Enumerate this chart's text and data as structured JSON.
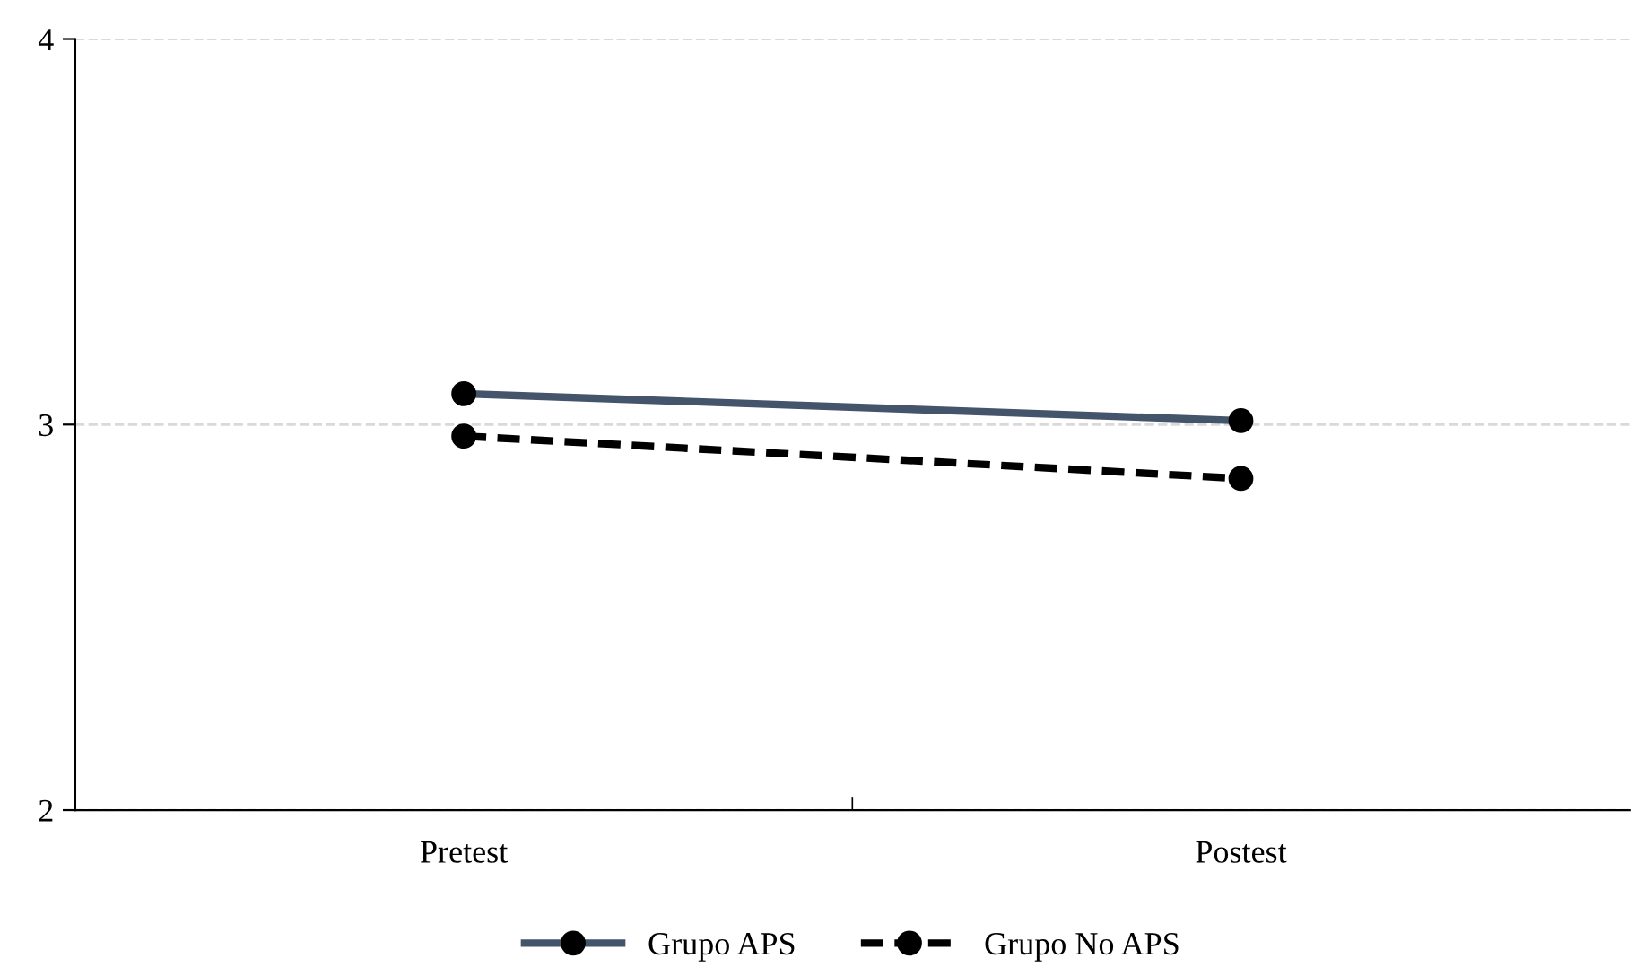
{
  "chart_data": {
    "type": "line",
    "categories": [
      "Pretest",
      "Postest"
    ],
    "series": [
      {
        "name": "Grupo APS",
        "color": "#44546a",
        "values": [
          3.08,
          3.01
        ],
        "line_style": "solid"
      },
      {
        "name": "Grupo No APS",
        "color": "#000000",
        "values": [
          2.97,
          2.86
        ],
        "line_style": "dashed"
      }
    ],
    "ylim": [
      2,
      4
    ],
    "yticks": [
      2,
      3,
      4
    ],
    "grid": "y",
    "legend": "bottom",
    "marker": "circle"
  }
}
